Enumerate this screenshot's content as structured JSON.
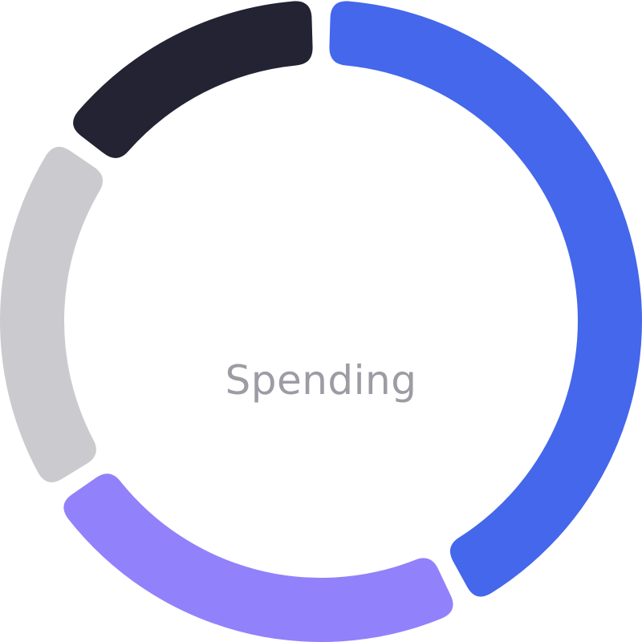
{
  "center_label": "Spending",
  "chart_data": {
    "type": "pie",
    "variant": "donut",
    "title": "",
    "start_angle_deg": 0,
    "direction": "clockwise",
    "slices": [
      {
        "value": 41.0,
        "color": "#4467eb"
      },
      {
        "value": 22.5,
        "color": "#9181fa"
      },
      {
        "value": 18.5,
        "color": "#cbcbcf"
      },
      {
        "value": 14.5,
        "color": "#232334"
      }
    ]
  }
}
